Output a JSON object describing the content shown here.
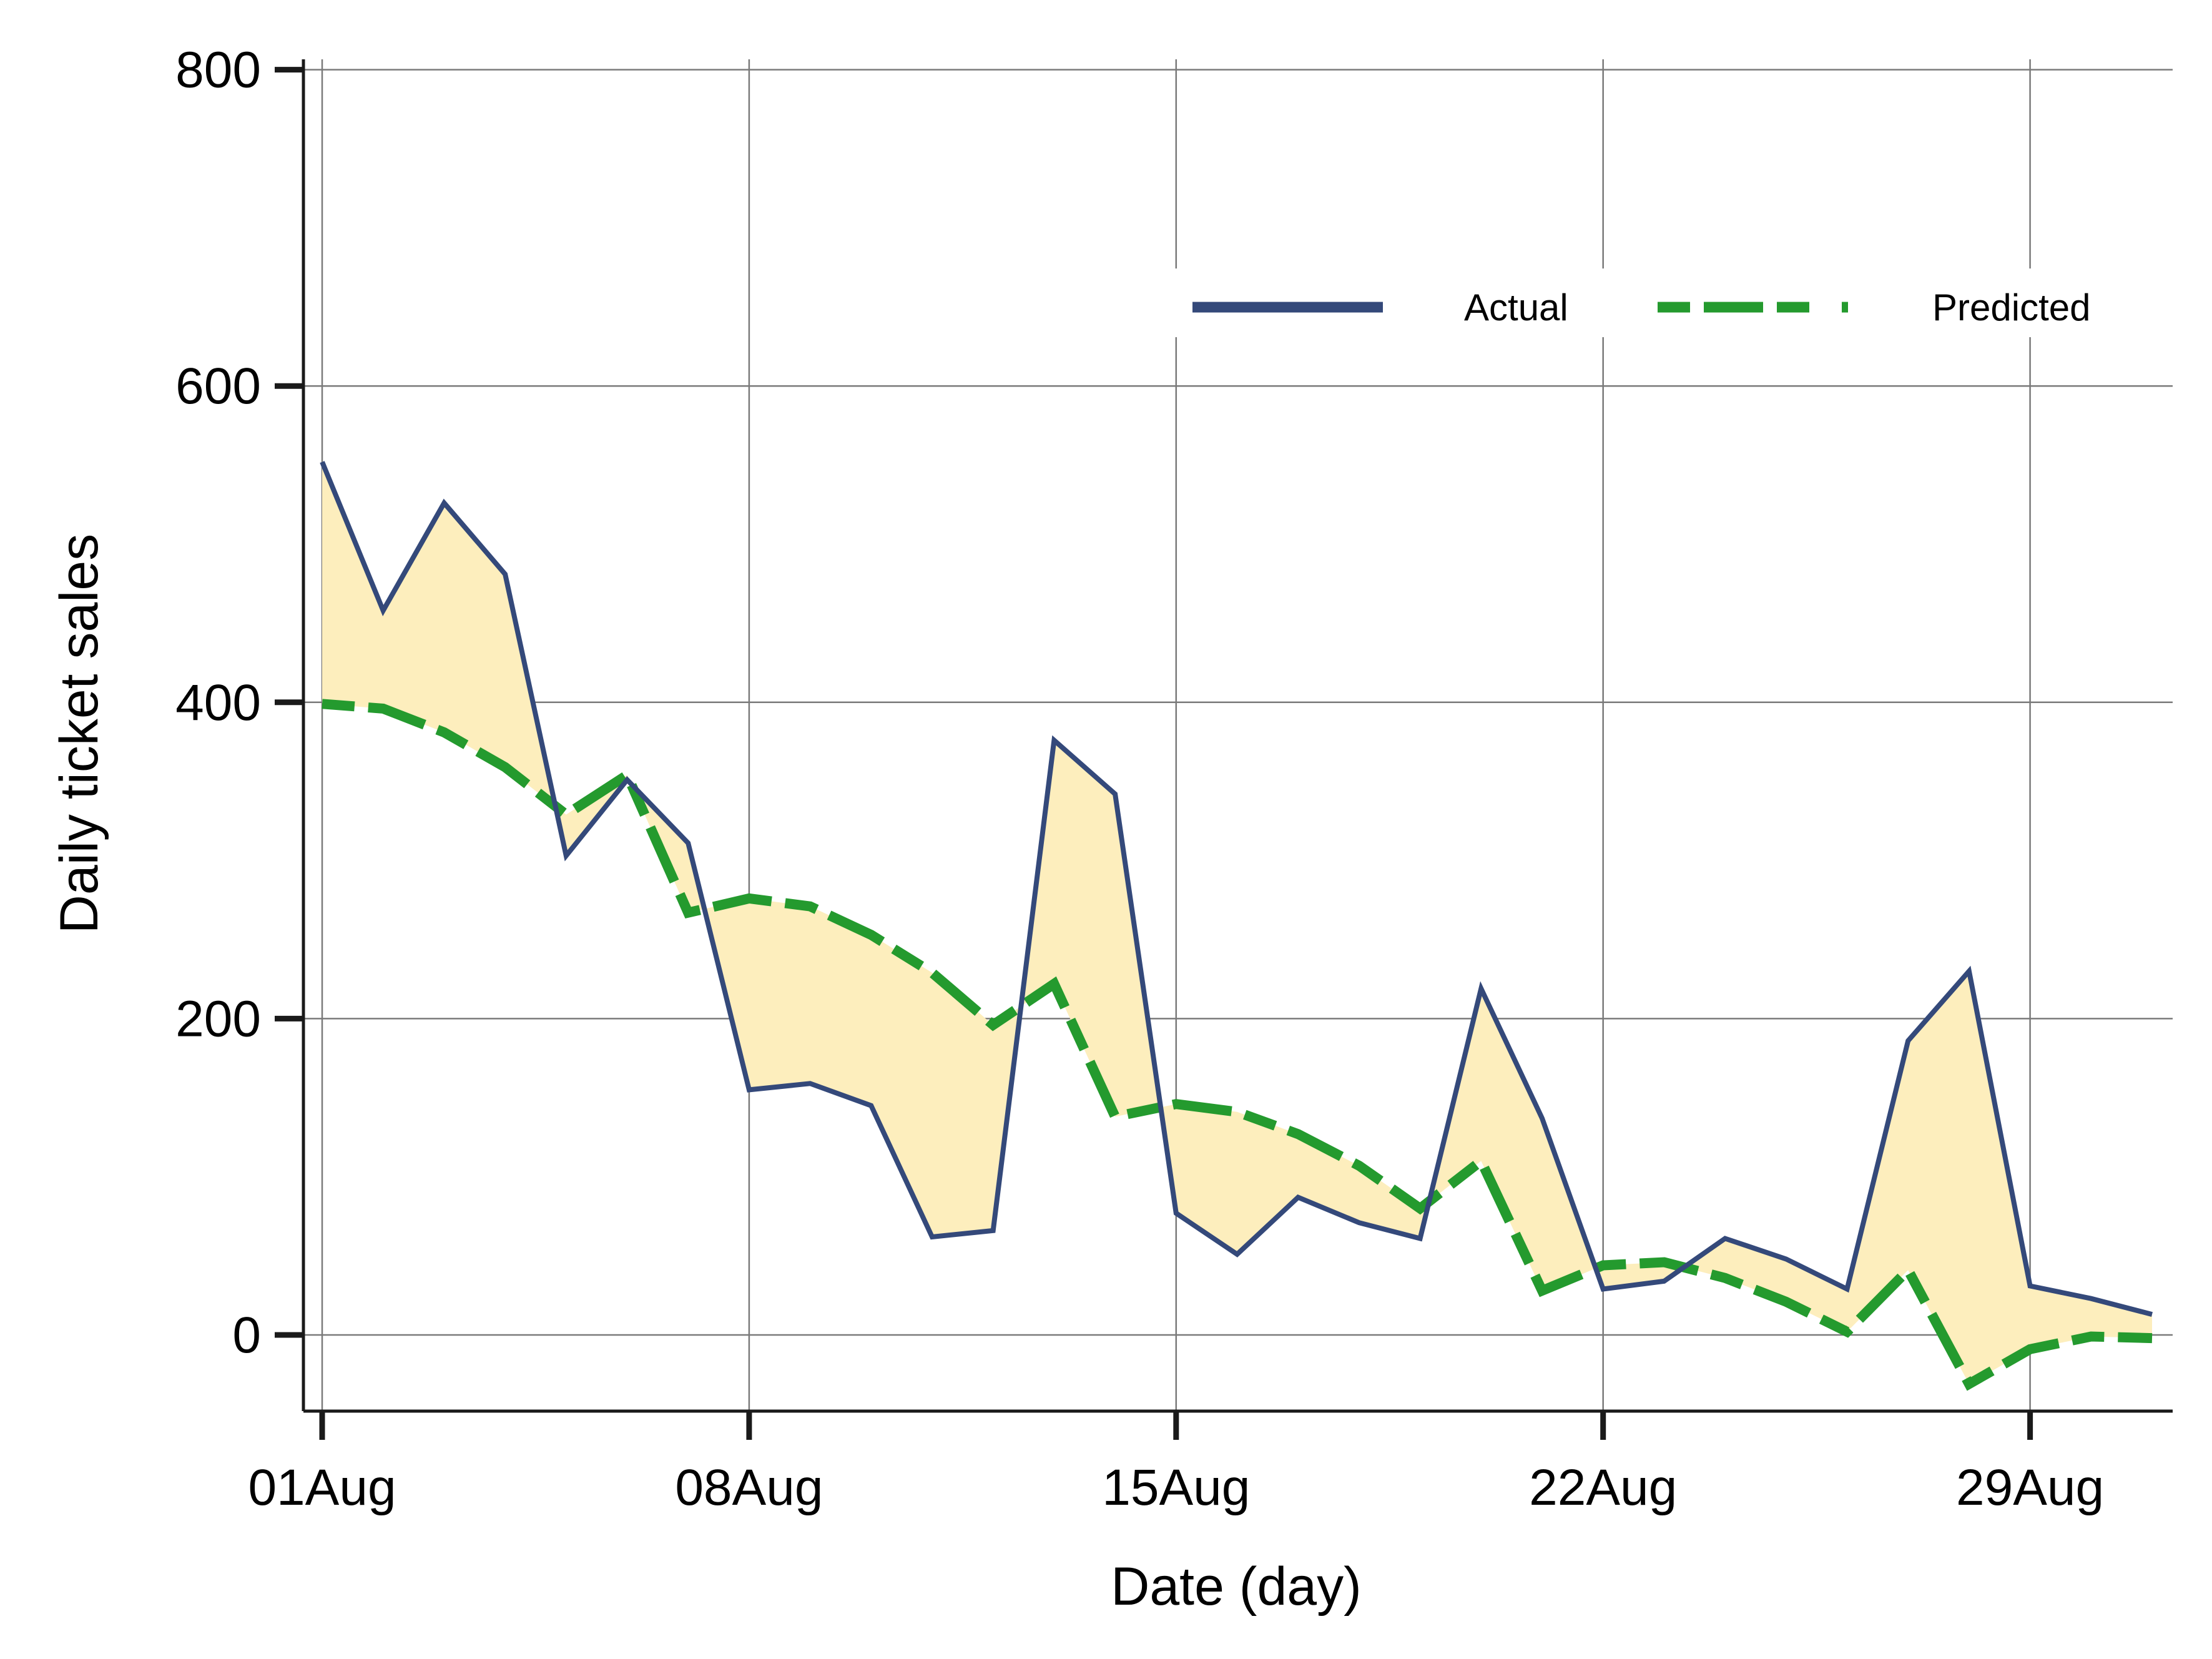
{
  "chart_data": {
    "type": "line",
    "xlabel": "Date (day)",
    "ylabel": "Daily ticket sales",
    "ylim": [
      -120,
      800
    ],
    "yticks": [
      "0",
      "200",
      "400",
      "600",
      "800"
    ],
    "xlim": [
      "01Aug",
      "31Aug"
    ],
    "xticks": [
      "01Aug",
      "08Aug",
      "15Aug",
      "22Aug",
      "29Aug"
    ],
    "grid": true,
    "legend_position": "top-right",
    "fill_between_series": true,
    "x": [
      "01Aug",
      "02Aug",
      "03Aug",
      "04Aug",
      "05Aug",
      "06Aug",
      "07Aug",
      "08Aug",
      "09Aug",
      "10Aug",
      "11Aug",
      "12Aug",
      "13Aug",
      "14Aug",
      "15Aug",
      "16Aug",
      "17Aug",
      "18Aug",
      "19Aug",
      "20Aug",
      "21Aug",
      "22Aug",
      "23Aug",
      "24Aug",
      "25Aug",
      "26Aug",
      "27Aug",
      "28Aug",
      "29Aug",
      "30Aug",
      "31Aug"
    ],
    "series": [
      {
        "name": "Actual",
        "style": "solid",
        "color": "#34497a",
        "values": [
          552,
          458,
          526,
          481,
          303,
          351,
          311,
          155,
          159,
          145,
          62,
          66,
          376,
          342,
          77,
          51,
          87,
          71,
          61,
          219,
          137,
          29,
          34,
          61,
          48,
          29,
          186,
          230,
          31,
          23,
          13
        ]
      },
      {
        "name": "Predicted",
        "style": "dashed",
        "color": "#249a2e",
        "values": [
          399,
          396,
          381,
          359,
          329,
          354,
          267,
          276,
          271,
          253,
          229,
          196,
          222,
          138,
          146,
          141,
          127,
          107,
          80,
          110,
          28,
          44,
          46,
          36,
          21,
          2,
          41,
          -31,
          -9,
          -1,
          -2
        ]
      }
    ],
    "colors": {
      "fill": "#fdeebd",
      "grid": "#7a7a7a",
      "axis": "#1a1a1a"
    }
  }
}
